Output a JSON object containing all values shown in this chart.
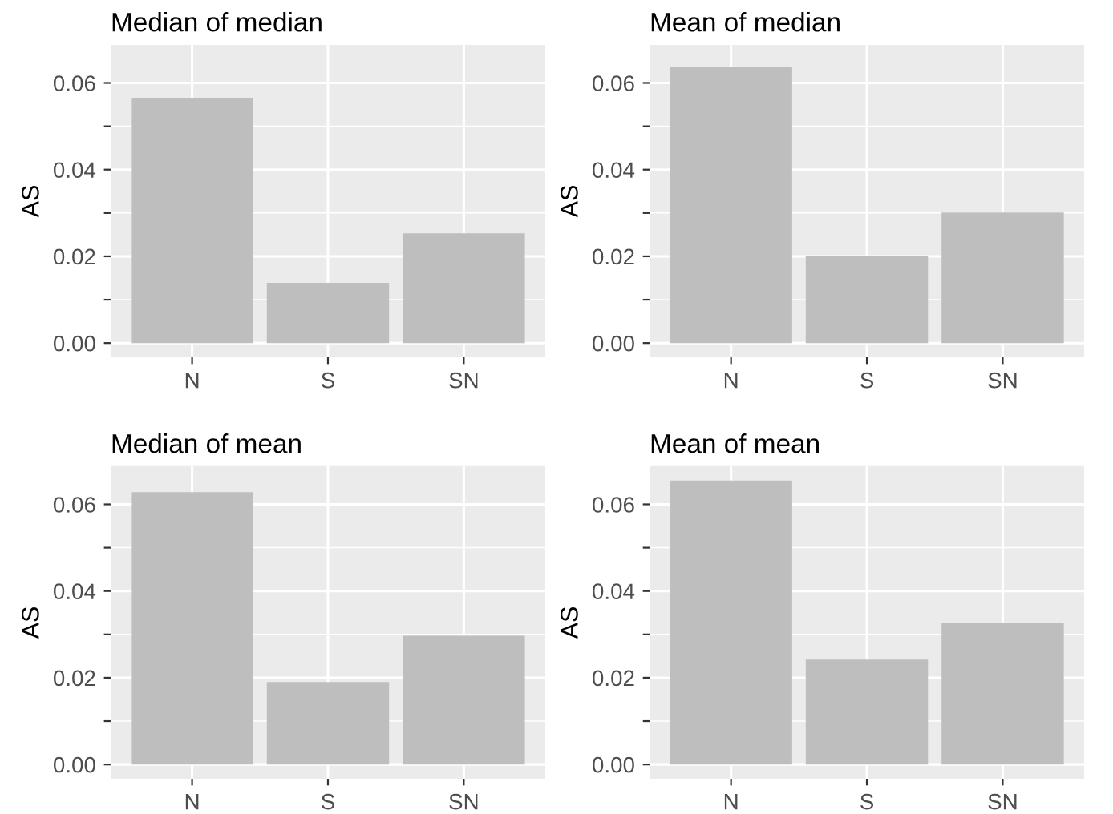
{
  "chart_data": [
    {
      "type": "bar",
      "title": "Median of median",
      "ylabel": "AS",
      "categories": [
        "N",
        "S",
        "SN"
      ],
      "values": [
        0.0566,
        0.0139,
        0.0253
      ],
      "color": "#bebebe",
      "ylim": [
        -0.0033,
        0.0688
      ],
      "yticks": [
        {
          "value": 0.0,
          "label": "0.00"
        },
        {
          "value": 0.01,
          "label": null
        },
        {
          "value": 0.02,
          "label": "0.02"
        },
        {
          "value": 0.03,
          "label": null
        },
        {
          "value": 0.04,
          "label": "0.04"
        },
        {
          "value": 0.05,
          "label": null
        },
        {
          "value": 0.06,
          "label": "0.06"
        }
      ],
      "grid": true
    },
    {
      "type": "bar",
      "title": "Mean of median",
      "ylabel": "AS",
      "categories": [
        "N",
        "S",
        "SN"
      ],
      "values": [
        0.0636,
        0.0201,
        0.0301
      ],
      "color": "#bebebe",
      "ylim": [
        -0.0033,
        0.0688
      ],
      "yticks": [
        {
          "value": 0.0,
          "label": "0.00"
        },
        {
          "value": 0.01,
          "label": null
        },
        {
          "value": 0.02,
          "label": "0.02"
        },
        {
          "value": 0.03,
          "label": null
        },
        {
          "value": 0.04,
          "label": "0.04"
        },
        {
          "value": 0.05,
          "label": null
        },
        {
          "value": 0.06,
          "label": "0.06"
        }
      ],
      "grid": true
    },
    {
      "type": "bar",
      "title": "Median of mean",
      "ylabel": "AS",
      "categories": [
        "N",
        "S",
        "SN"
      ],
      "values": [
        0.0628,
        0.019,
        0.0297
      ],
      "color": "#bebebe",
      "ylim": [
        -0.0033,
        0.0688
      ],
      "yticks": [
        {
          "value": 0.0,
          "label": "0.00"
        },
        {
          "value": 0.01,
          "label": null
        },
        {
          "value": 0.02,
          "label": "0.02"
        },
        {
          "value": 0.03,
          "label": null
        },
        {
          "value": 0.04,
          "label": "0.04"
        },
        {
          "value": 0.05,
          "label": null
        },
        {
          "value": 0.06,
          "label": "0.06"
        }
      ],
      "grid": true
    },
    {
      "type": "bar",
      "title": "Mean of mean",
      "ylabel": "AS",
      "categories": [
        "N",
        "S",
        "SN"
      ],
      "values": [
        0.0655,
        0.0242,
        0.0326
      ],
      "color": "#bebebe",
      "ylim": [
        -0.0033,
        0.0688
      ],
      "yticks": [
        {
          "value": 0.0,
          "label": "0.00"
        },
        {
          "value": 0.01,
          "label": null
        },
        {
          "value": 0.02,
          "label": "0.02"
        },
        {
          "value": 0.03,
          "label": null
        },
        {
          "value": 0.04,
          "label": "0.04"
        },
        {
          "value": 0.05,
          "label": null
        },
        {
          "value": 0.06,
          "label": "0.06"
        }
      ],
      "grid": true
    }
  ]
}
